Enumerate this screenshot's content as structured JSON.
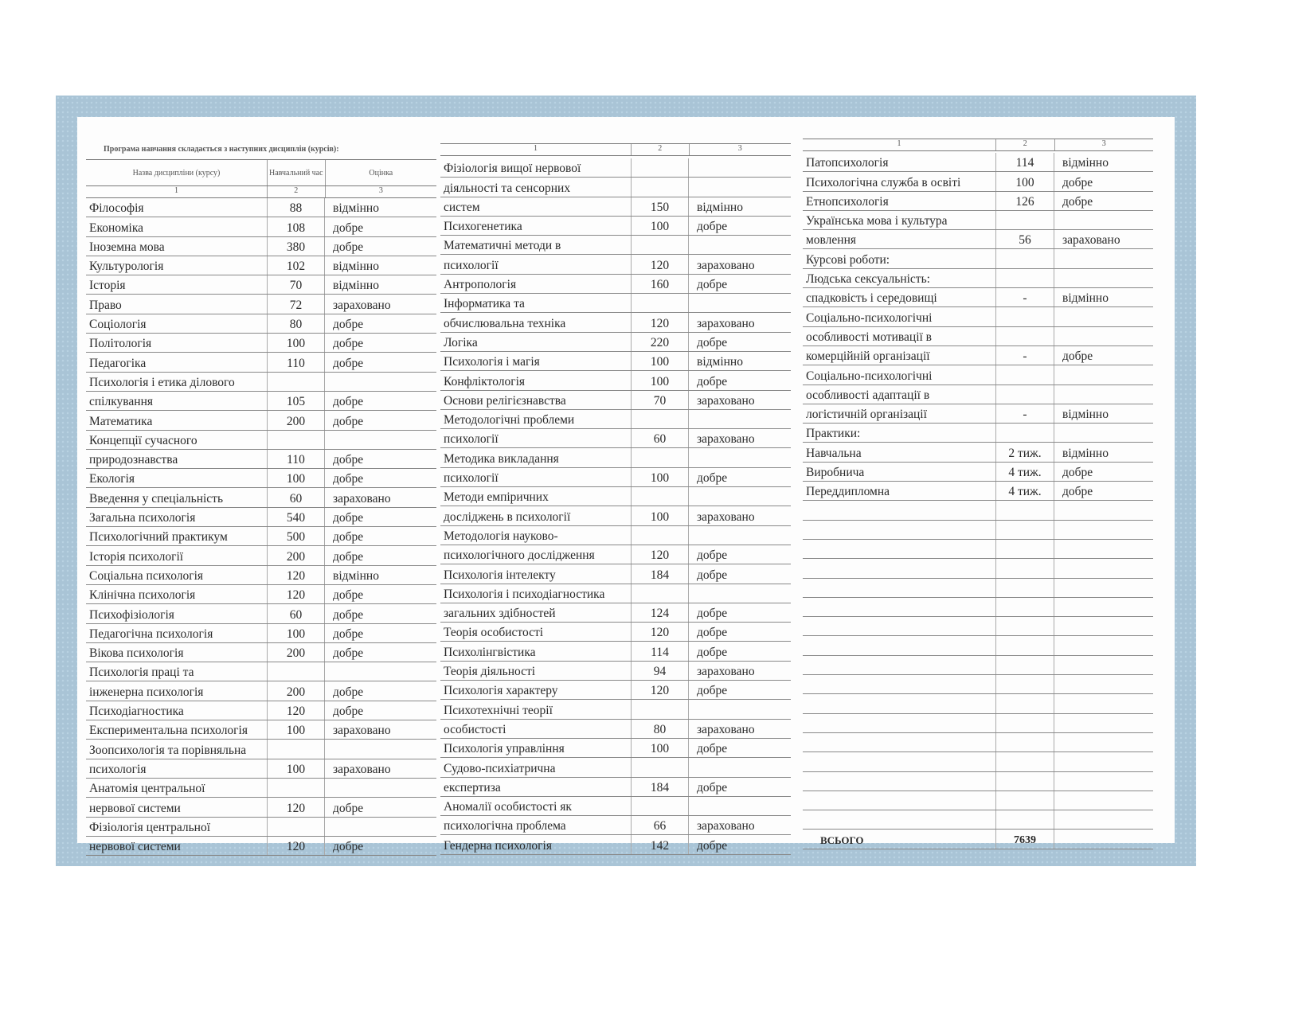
{
  "title": "Програма навчання складається з наступних дисциплін (курсів):",
  "header": {
    "name": "Назва дисципліни (курсу)",
    "hours": "Навчальний час",
    "grade": "Оцінка",
    "n1": "1",
    "n2": "2",
    "n3": "3"
  },
  "columns": [
    {
      "rows": [
        [
          "Філософія",
          "88",
          "відмінно"
        ],
        [
          "Економіка",
          "108",
          "добре"
        ],
        [
          "Іноземна мова",
          "380",
          "добре"
        ],
        [
          "Культурологія",
          "102",
          "відмінно"
        ],
        [
          "Історія",
          "70",
          "відмінно"
        ],
        [
          "Право",
          "72",
          "зараховано"
        ],
        [
          "Соціологія",
          "80",
          "добре"
        ],
        [
          "Політологія",
          "100",
          "добре"
        ],
        [
          "Педагогіка",
          "110",
          "добре"
        ],
        [
          "Психологія і етика ділового",
          "",
          ""
        ],
        [
          "спілкування",
          "105",
          "добре"
        ],
        [
          "Математика",
          "200",
          "добре"
        ],
        [
          "Концепції сучасного",
          "",
          ""
        ],
        [
          "природознавства",
          "110",
          "добре"
        ],
        [
          "Екологія",
          "100",
          "добре"
        ],
        [
          "Введення у спеціальність",
          "60",
          "зараховано"
        ],
        [
          "Загальна психологія",
          "540",
          "добре"
        ],
        [
          "Психологічний практикум",
          "500",
          "добре"
        ],
        [
          "Історія психології",
          "200",
          "добре"
        ],
        [
          "Соціальна психологія",
          "120",
          "відмінно"
        ],
        [
          "Клінічна психологія",
          "120",
          "добре"
        ],
        [
          "Психофізіологія",
          "60",
          "добре"
        ],
        [
          "Педагогічна психологія",
          "100",
          "добре"
        ],
        [
          "Вікова психологія",
          "200",
          "добре"
        ],
        [
          "Психологія праці та",
          "",
          ""
        ],
        [
          "інженерна психологія",
          "200",
          "добре"
        ],
        [
          "Психодіагностика",
          "120",
          "добре"
        ],
        [
          "Експериментальна психологія",
          "100",
          "зараховано"
        ],
        [
          "Зоопсихологія та порівняльна",
          "",
          ""
        ],
        [
          "психологія",
          "100",
          "зараховано"
        ],
        [
          "Анатомія центральної",
          "",
          ""
        ],
        [
          "нервової системи",
          "120",
          "добре"
        ],
        [
          "Фізіологія центральної",
          "",
          ""
        ],
        [
          "нервової системи",
          "120",
          "добре"
        ]
      ]
    },
    {
      "rows": [
        [
          "Фізіологія вищої нервової",
          "",
          ""
        ],
        [
          "діяльності та сенсорних",
          "",
          ""
        ],
        [
          "систем",
          "150",
          "відмінно"
        ],
        [
          "Психогенетика",
          "100",
          "добре"
        ],
        [
          "Математичні методи в",
          "",
          ""
        ],
        [
          "психології",
          "120",
          "зараховано"
        ],
        [
          "Антропологія",
          "160",
          "добре"
        ],
        [
          "Інформатика та",
          "",
          ""
        ],
        [
          "обчислювальна техніка",
          "120",
          "зараховано"
        ],
        [
          "Логіка",
          "220",
          "добре"
        ],
        [
          "Психологія і магія",
          "100",
          "відмінно"
        ],
        [
          "Конфліктологія",
          "100",
          "добре"
        ],
        [
          "Основи релігієзнавства",
          "70",
          "зараховано"
        ],
        [
          "Методологічні проблеми",
          "",
          ""
        ],
        [
          "психології",
          "60",
          "зараховано"
        ],
        [
          "Методика викладання",
          "",
          ""
        ],
        [
          "психології",
          "100",
          "добре"
        ],
        [
          "Методи емпіричних",
          "",
          ""
        ],
        [
          "досліджень в психології",
          "100",
          "зараховано"
        ],
        [
          "Методологія науково-",
          "",
          ""
        ],
        [
          "психологічного дослідження",
          "120",
          "добре"
        ],
        [
          "Психологія інтелекту",
          "184",
          "добре"
        ],
        [
          "Психологія і психодіагностика",
          "",
          ""
        ],
        [
          "загальних здібностей",
          "124",
          "добре"
        ],
        [
          "Теорія особистості",
          "120",
          "добре"
        ],
        [
          "Психолінгвістика",
          "114",
          "добре"
        ],
        [
          "Теорія діяльності",
          "94",
          "зараховано"
        ],
        [
          "Психологія характеру",
          "120",
          "добре"
        ],
        [
          "Психотехнічні теорії",
          "",
          ""
        ],
        [
          "особистості",
          "80",
          "зараховано"
        ],
        [
          "Психологія управління",
          "100",
          "добре"
        ],
        [
          "Судово-психіатрична",
          "",
          ""
        ],
        [
          "експертиза",
          "184",
          "добре"
        ],
        [
          "Аномалії особистості як",
          "",
          ""
        ],
        [
          "психологічна проблема",
          "66",
          "зараховано"
        ],
        [
          "Гендерна психологія",
          "142",
          "добре"
        ]
      ]
    },
    {
      "rows": [
        [
          "Патопсихологія",
          "114",
          "відмінно"
        ],
        [
          "Психологічна служба в освіті",
          "100",
          "добре"
        ],
        [
          "Етнопсихологія",
          "126",
          "добре"
        ],
        [
          "Українська мова і культура",
          "",
          ""
        ],
        [
          "мовлення",
          "56",
          "зараховано"
        ],
        [
          "Курсові роботи:",
          "",
          ""
        ],
        [
          "Людська сексуальність:",
          "",
          ""
        ],
        [
          "спадковість і середовищі",
          "-",
          "відмінно"
        ],
        [
          "Соціально-психологічні",
          "",
          ""
        ],
        [
          "особливості мотивації в",
          "",
          ""
        ],
        [
          "комерційній організації",
          "-",
          "добре"
        ],
        [
          "Соціально-психологічні",
          "",
          ""
        ],
        [
          "особливості адаптації в",
          "",
          ""
        ],
        [
          "логістичній організації",
          "-",
          "відмінно"
        ],
        [
          "Практики:",
          "",
          ""
        ],
        [
          "Навчальна",
          "2 тиж.",
          "відмінно"
        ],
        [
          "Виробнича",
          "4 тиж.",
          "добре"
        ],
        [
          "Переддипломна",
          "4 тиж.",
          "добре"
        ]
      ],
      "total": {
        "label": "ВСЬОГО",
        "hours": "7639"
      }
    }
  ]
}
